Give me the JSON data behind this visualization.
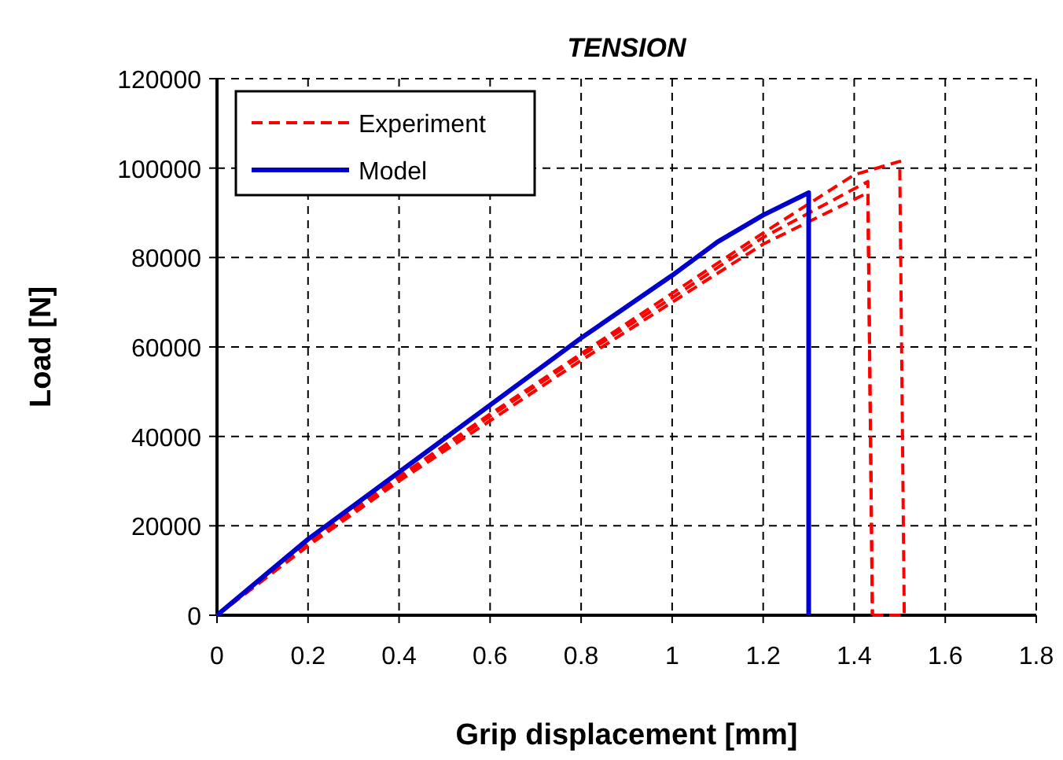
{
  "chart_data": {
    "type": "line",
    "title": "TENSION",
    "xlabel": "Grip displacement [mm]",
    "ylabel": "Load [N]",
    "xlim": [
      0,
      1.8
    ],
    "xticks": [
      0,
      0.2,
      0.4,
      0.6,
      0.8,
      1,
      1.2,
      1.4,
      1.6,
      1.8
    ],
    "ylim": [
      0,
      120000
    ],
    "yticks": [
      0,
      20000,
      40000,
      60000,
      80000,
      100000,
      120000
    ],
    "grid": true,
    "legend": "top left",
    "series": [
      {
        "name": "Experiment",
        "color": "#ff0000",
        "line_style": "dashed",
        "x": [
          0,
          0.2,
          0.4,
          0.6,
          0.8,
          1.0,
          1.2,
          1.4,
          1.5,
          1.51,
          1.44
        ],
        "values": [
          0,
          16500,
          31000,
          45000,
          58500,
          72000,
          85500,
          98500,
          101500,
          0,
          0
        ]
      },
      {
        "color": "#ff0000",
        "line_style": "dashed",
        "x": [
          0,
          0.2,
          0.4,
          0.6,
          0.8,
          1.0,
          1.2,
          1.43,
          1.44
        ],
        "values": [
          0,
          16000,
          30500,
          44500,
          58000,
          71000,
          84500,
          97000,
          0
        ]
      },
      {
        "color": "#ff0000",
        "line_style": "dashed",
        "x": [
          0,
          0.2,
          0.4,
          0.6,
          0.8,
          1.0,
          1.2,
          1.43,
          1.44
        ],
        "values": [
          0,
          15500,
          30000,
          43500,
          57000,
          70000,
          83000,
          94500,
          0
        ]
      },
      {
        "name": "Model",
        "color": "#0000cc",
        "line_style": "solid",
        "x": [
          0,
          0.2,
          0.4,
          0.6,
          0.8,
          1.0,
          1.1,
          1.2,
          1.3,
          1.3
        ],
        "values": [
          0,
          17000,
          32000,
          47000,
          62000,
          76000,
          83500,
          89500,
          94500,
          0
        ]
      }
    ]
  }
}
